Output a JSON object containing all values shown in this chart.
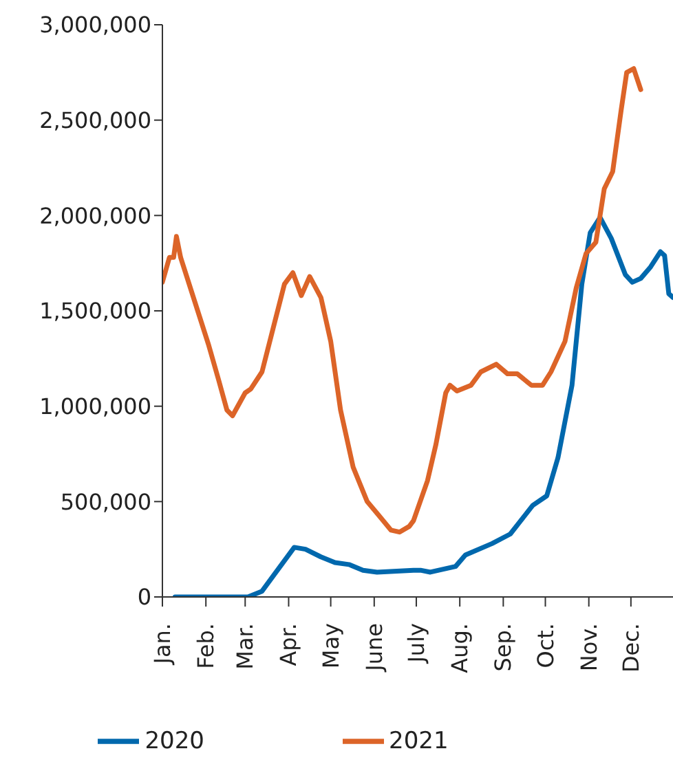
{
  "chart_data": {
    "type": "line",
    "xlim": [
      "--01-01",
      "--12-31"
    ],
    "xticks": [
      {
        "value": "--01-01",
        "label": "Jan."
      },
      {
        "value": "--02-01",
        "label": "Feb."
      },
      {
        "value": "--03-01",
        "label": "Mar."
      },
      {
        "value": "--04-01",
        "label": "Apr."
      },
      {
        "value": "--05-01",
        "label": "May"
      },
      {
        "value": "--06-01",
        "label": "June"
      },
      {
        "value": "--07-01",
        "label": "July"
      },
      {
        "value": "--08-01",
        "label": "Aug."
      },
      {
        "value": "--09-01",
        "label": "Sep."
      },
      {
        "value": "--10-01",
        "label": "Oct."
      },
      {
        "value": "--11-01",
        "label": "Nov."
      },
      {
        "value": "--12-01",
        "label": "Dec."
      }
    ],
    "ylim": [
      0,
      3000000
    ],
    "yticks": [
      {
        "value": 0,
        "label": "0"
      },
      {
        "value": 500000,
        "label": "500,000"
      },
      {
        "value": 1000000,
        "label": "1,000,000"
      },
      {
        "value": 1500000,
        "label": "1,500,000"
      },
      {
        "value": 2000000,
        "label": "2,000,000"
      },
      {
        "value": 2500000,
        "label": "2,500,000"
      },
      {
        "value": 3000000,
        "label": "3,000,000"
      }
    ],
    "grid": false,
    "legend": "bottom",
    "marker": "none",
    "line_style": "solid",
    "series": [
      {
        "name": "2020",
        "color": "#0068ad",
        "x": [
          "--01-10",
          "--03-03",
          "--03-13",
          "--03-23",
          "--04-05",
          "--04-13",
          "--04-24",
          "--05-04",
          "--05-14",
          "--05-24",
          "--06-03",
          "--06-29",
          "--07-04",
          "--07-11",
          "--07-29",
          "--08-05",
          "--08-24",
          "--09-06",
          "--09-22",
          "--10-02",
          "--10-10",
          "--10-20",
          "--10-27",
          "--11-02",
          "--11-09",
          "--11-17",
          "--11-27",
          "--12-02",
          "--12-08",
          "--12-15",
          "--12-22",
          "--12-25",
          "--12-28",
          "--12-31"
        ],
        "values": [
          0,
          0,
          30000,
          130000,
          260000,
          250000,
          210000,
          180000,
          170000,
          140000,
          130000,
          140000,
          140000,
          130000,
          160000,
          220000,
          280000,
          330000,
          480000,
          530000,
          730000,
          1110000,
          1640000,
          1910000,
          1990000,
          1880000,
          1690000,
          1650000,
          1670000,
          1730000,
          1810000,
          1790000,
          1590000,
          1570000
        ]
      },
      {
        "name": "2021",
        "color": "#dc6428",
        "x": [
          "--01-01",
          "--01-06",
          "--01-09",
          "--01-11",
          "--01-14",
          "--01-24",
          "--02-03",
          "--02-10",
          "--02-16",
          "--02-20",
          "--03-01",
          "--03-05",
          "--03-13",
          "--03-21",
          "--03-29",
          "--04-04",
          "--04-10",
          "--04-16",
          "--04-24",
          "--05-01",
          "--05-08",
          "--05-17",
          "--05-27",
          "--06-04",
          "--06-13",
          "--06-19",
          "--06-26",
          "--06-29",
          "--07-09",
          "--07-15",
          "--07-22",
          "--07-25",
          "--07-30",
          "--08-09",
          "--08-16",
          "--08-27",
          "--09-04",
          "--09-11",
          "--09-21",
          "--09-29",
          "--10-05",
          "--10-15",
          "--10-23",
          "--10-30",
          "--11-06",
          "--11-12",
          "--11-18",
          "--11-24",
          "--11-28",
          "--12-03",
          "--12-08"
        ],
        "values": [
          1650000,
          1780000,
          1780000,
          1890000,
          1780000,
          1550000,
          1320000,
          1140000,
          980000,
          950000,
          1070000,
          1090000,
          1180000,
          1410000,
          1640000,
          1700000,
          1580000,
          1680000,
          1570000,
          1340000,
          980000,
          680000,
          500000,
          430000,
          350000,
          340000,
          370000,
          400000,
          610000,
          800000,
          1070000,
          1110000,
          1080000,
          1110000,
          1180000,
          1220000,
          1170000,
          1170000,
          1110000,
          1110000,
          1180000,
          1340000,
          1620000,
          1800000,
          1860000,
          2140000,
          2230000,
          2550000,
          2750000,
          2770000,
          2660000
        ]
      }
    ]
  }
}
